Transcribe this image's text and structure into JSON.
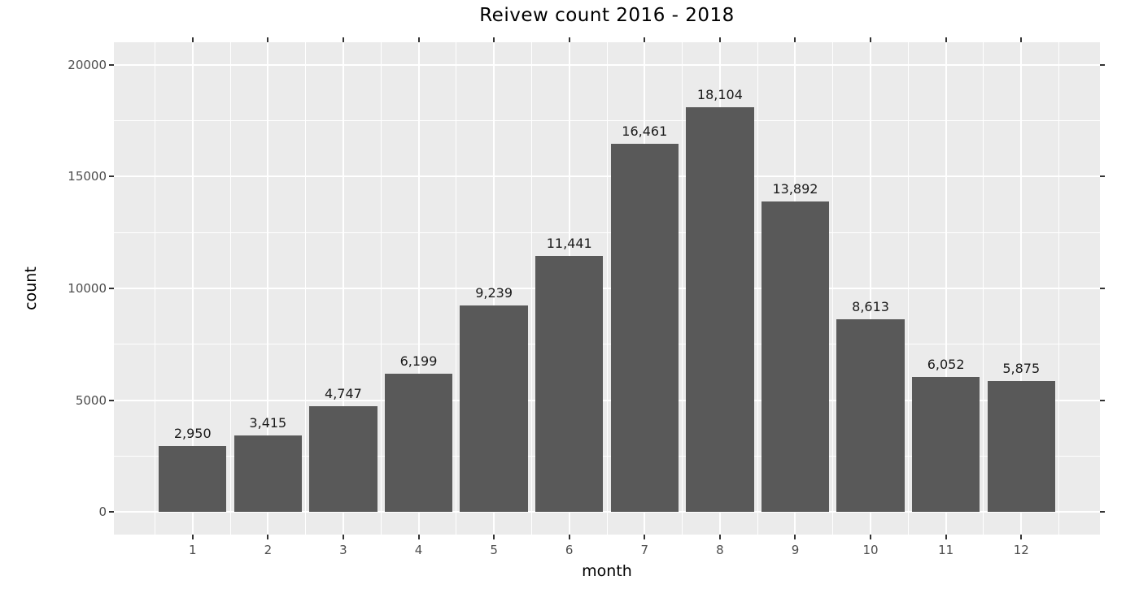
{
  "chart_data": {
    "type": "bar",
    "title": "Reivew count 2016 - 2018",
    "xlabel": "month",
    "ylabel": "count",
    "categories": [
      1,
      2,
      3,
      4,
      5,
      6,
      7,
      8,
      9,
      10,
      11,
      12
    ],
    "values": [
      2950,
      3415,
      4747,
      6199,
      9239,
      11441,
      16461,
      18104,
      13892,
      8613,
      6052,
      5875
    ],
    "value_labels": [
      "2,950",
      "3,415",
      "4,747",
      "6,199",
      "9,239",
      "11,441",
      "16,461",
      "18,104",
      "13,892",
      "8,613",
      "6,052",
      "5,875"
    ],
    "x_tick_labels": [
      "1",
      "2",
      "3",
      "4",
      "5",
      "6",
      "7",
      "8",
      "9",
      "10",
      "11",
      "12"
    ],
    "y_ticks": [
      0,
      5000,
      10000,
      15000,
      20000
    ],
    "y_tick_labels": [
      "0",
      "5000",
      "10000",
      "15000",
      "20000"
    ],
    "y_minor_ticks": [
      2500,
      7500,
      12500,
      17500
    ],
    "xlim": [
      -0.045,
      13.045
    ],
    "ylim": [
      -1000,
      21000
    ],
    "bar_width": 0.9,
    "grid": true,
    "minor_grid": true,
    "ticks_all_sides": true,
    "legend": false,
    "colors": {
      "bar_fill": "#595959",
      "panel_background": "#ebebeb",
      "figure_background": "#ffffff",
      "gridline": "#ffffff",
      "tick_mark": "#333333",
      "tick_label": "#4d4d4d",
      "value_label": "#1a1a1a",
      "title_text": "#000000"
    }
  }
}
